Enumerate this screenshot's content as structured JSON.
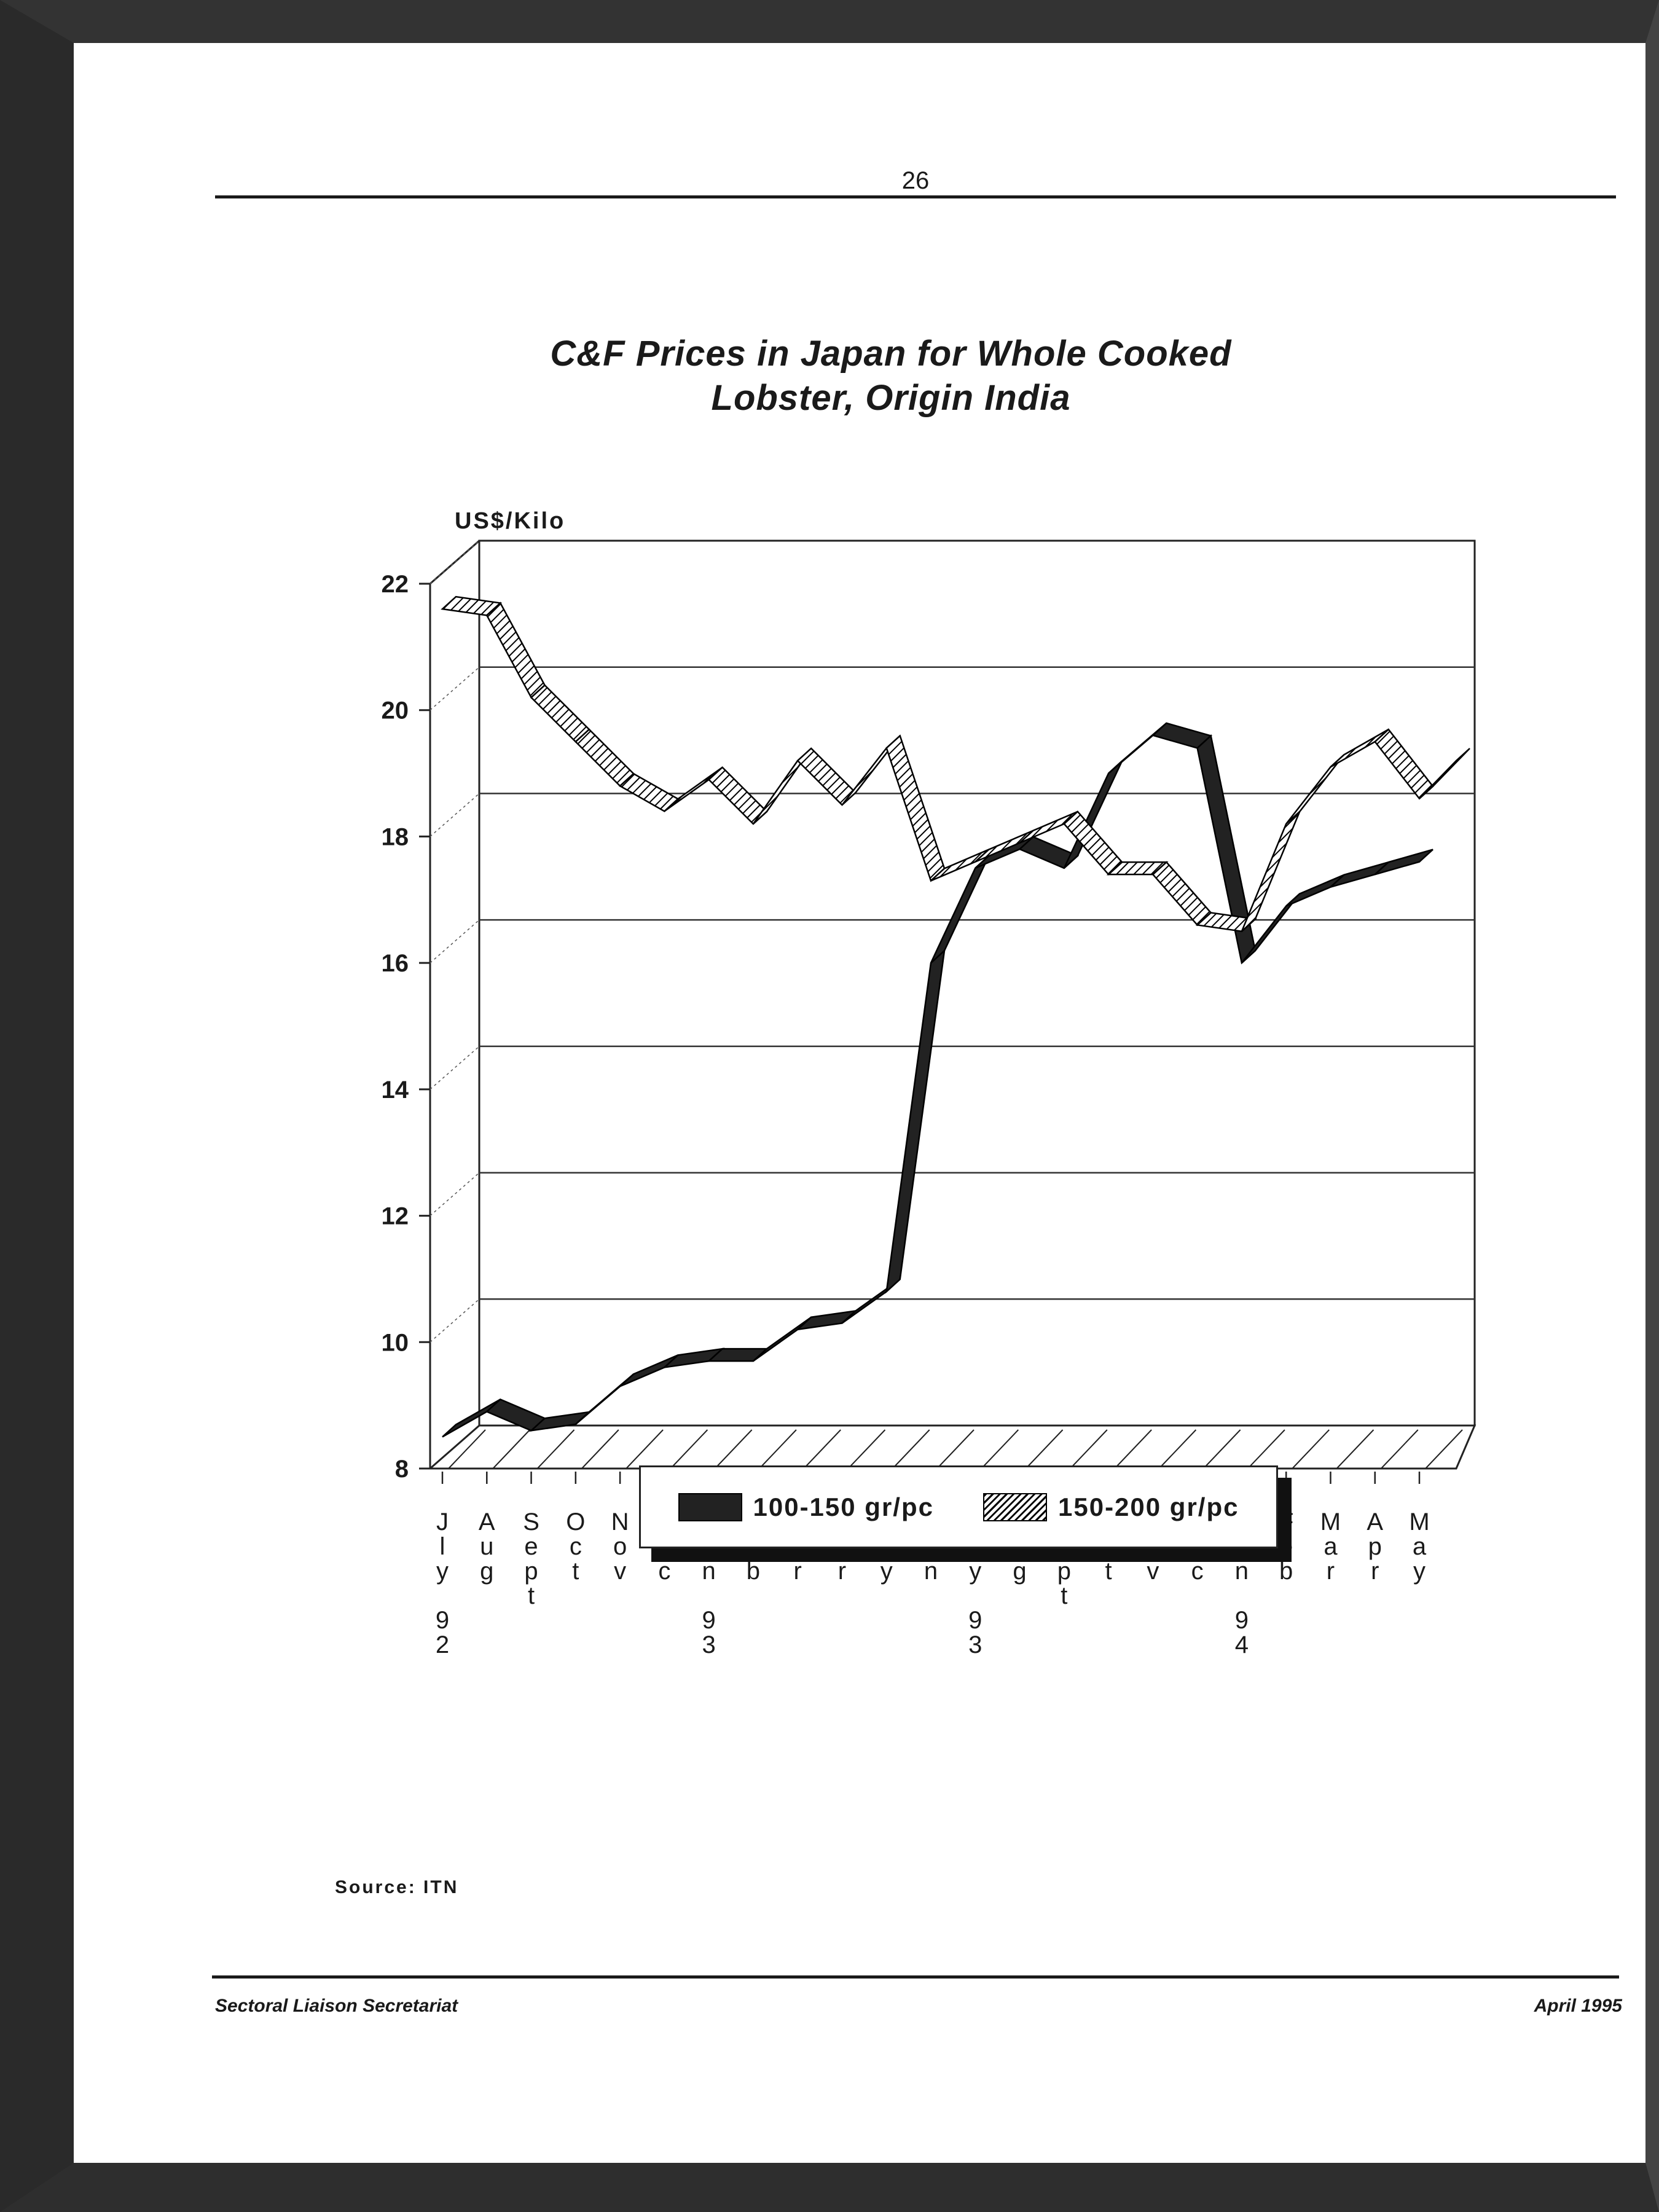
{
  "page": {
    "page_number": "26",
    "footer_left": "Sectoral Liaison Secretariat",
    "footer_right": "April  1995",
    "source": "Source: ITN"
  },
  "chart_data": {
    "type": "line",
    "title_line1": "C&F Prices in Japan for Whole Cooked",
    "title_line2": "Lobster, Origin India",
    "ylabel": "US$/Kilo",
    "xlabel": "",
    "ylim": [
      8,
      22
    ],
    "yticks": [
      8,
      10,
      12,
      14,
      16,
      18,
      20,
      22
    ],
    "grid": true,
    "legend_position": "bottom-center",
    "categories": [
      "July 92",
      "Aug",
      "Sept",
      "Oct",
      "Nov",
      "Dec",
      "Jan 93",
      "Feb",
      "Mar",
      "Apr",
      "May",
      "Jun",
      "July 93",
      "Aug",
      "Sept",
      "Oct",
      "Nov",
      "Dec",
      "Jan 94",
      "Feb",
      "Mar",
      "Apr",
      "May"
    ],
    "tick_labels": [
      [
        "J",
        "l",
        "y",
        "",
        "9",
        "2"
      ],
      [
        "A",
        "u",
        "g"
      ],
      [
        "S",
        "e",
        "p",
        "t"
      ],
      [
        "O",
        "c",
        "t"
      ],
      [
        "N",
        "o",
        "v"
      ],
      [
        "D",
        "e",
        "c"
      ],
      [
        "J",
        "a",
        "n",
        "",
        "9",
        "3"
      ],
      [
        "F",
        "e",
        "b"
      ],
      [
        "M",
        "a",
        "r"
      ],
      [
        "A",
        "p",
        "r"
      ],
      [
        "M",
        "a",
        "y"
      ],
      [
        "J",
        "u",
        "n"
      ],
      [
        "J",
        "l",
        "y",
        "",
        "9",
        "3"
      ],
      [
        "A",
        "u",
        "g"
      ],
      [
        "S",
        "e",
        "p",
        "t"
      ],
      [
        "O",
        "c",
        "t"
      ],
      [
        "N",
        "o",
        "v"
      ],
      [
        "D",
        "e",
        "c"
      ],
      [
        "J",
        "a",
        "n",
        "",
        "9",
        "4"
      ],
      [
        "F",
        "e",
        "b"
      ],
      [
        "M",
        "a",
        "r"
      ],
      [
        "A",
        "p",
        "r"
      ],
      [
        "M",
        "a",
        "y"
      ]
    ],
    "series": [
      {
        "name": "100-150 gr/pc",
        "color": "#222222",
        "pattern": "solid",
        "values": [
          8.5,
          8.9,
          8.6,
          8.7,
          9.3,
          9.6,
          9.7,
          9.7,
          10.2,
          10.3,
          10.8,
          16.0,
          17.5,
          17.8,
          17.5,
          19.0,
          19.6,
          19.4,
          16.0,
          16.9,
          17.2,
          17.4,
          17.6
        ]
      },
      {
        "name": "150-200 gr/pc",
        "color": "#ffffff",
        "pattern": "hatched",
        "values": [
          21.6,
          21.5,
          20.2,
          19.5,
          18.8,
          18.4,
          18.9,
          18.2,
          19.2,
          18.5,
          19.4,
          17.3,
          17.6,
          17.9,
          18.2,
          17.4,
          17.4,
          16.6,
          16.5,
          18.2,
          19.1,
          19.5,
          18.6
        ]
      }
    ],
    "series_tail": {
      "extra_value_150_200": 19.2
    }
  }
}
